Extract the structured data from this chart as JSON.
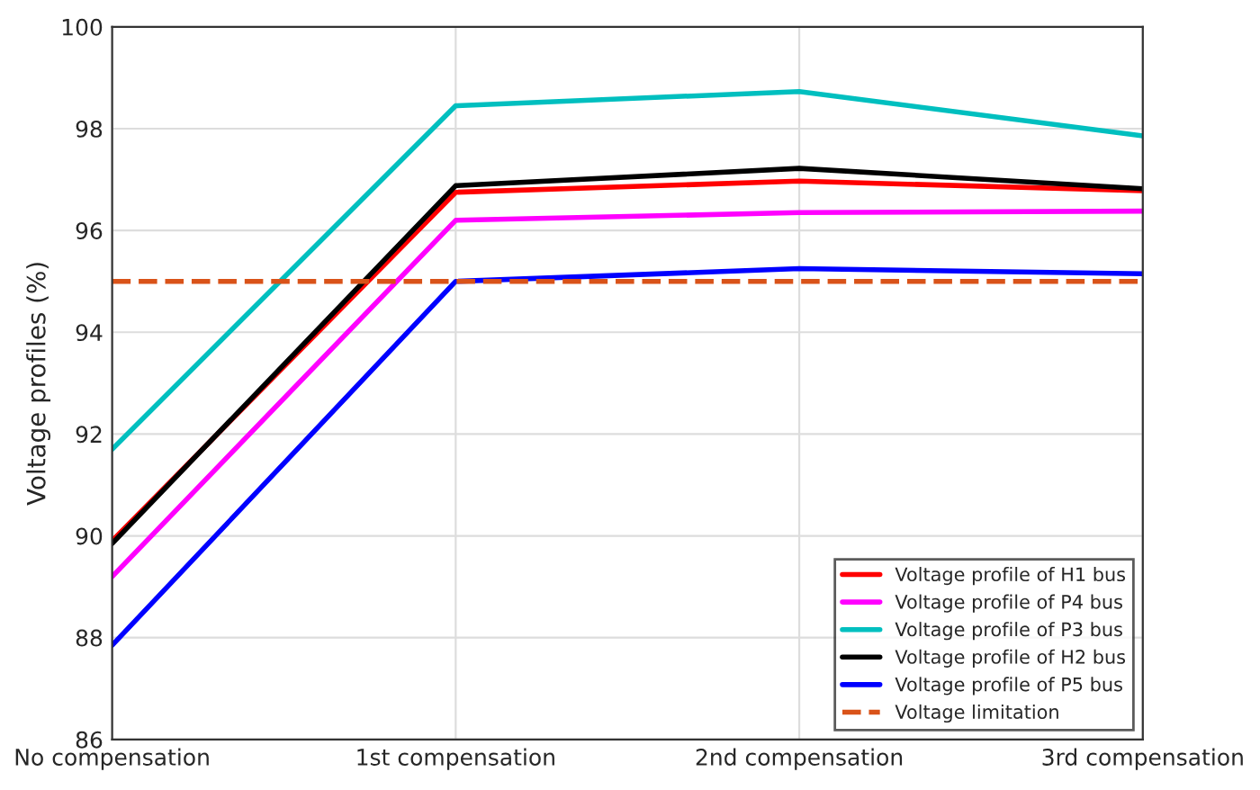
{
  "chart_data": {
    "type": "line",
    "ylabel": "Voltage profiles (%)",
    "categories": [
      "No compensation",
      "1st compensation",
      "2nd compensation",
      "3rd compensation"
    ],
    "series": [
      {
        "name": "Voltage profile of H1 bus",
        "color": "#ff0000",
        "values": [
          89.9,
          96.75,
          96.97,
          96.78
        ]
      },
      {
        "name": "Voltage profile of P4 bus",
        "color": "#ff00ff",
        "values": [
          89.2,
          96.2,
          96.35,
          96.38
        ]
      },
      {
        "name": "Voltage profile of P3 bus",
        "color": "#00bfbf",
        "values": [
          91.7,
          98.45,
          98.73,
          97.86
        ]
      },
      {
        "name": "Voltage profile of H2 bus",
        "color": "#000000",
        "values": [
          89.85,
          96.88,
          97.22,
          96.82
        ]
      },
      {
        "name": "Voltage profile of P5 bus",
        "color": "#0000ff",
        "values": [
          87.85,
          95.0,
          95.25,
          95.15
        ]
      }
    ],
    "ref_lines": [
      {
        "axis": "y",
        "value": 95,
        "label": "Voltage limitation",
        "color": "#d95319",
        "line_style": "dashed"
      }
    ],
    "ylim": [
      86,
      100
    ],
    "yticks": [
      86,
      88,
      90,
      92,
      94,
      96,
      98,
      100
    ],
    "grid": true,
    "legend": "bottom right",
    "marker": "none",
    "line_style": "solid"
  }
}
